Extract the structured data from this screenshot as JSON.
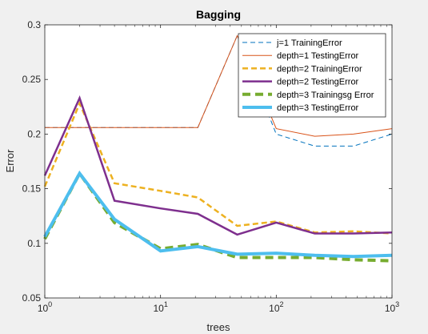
{
  "chart_data": {
    "type": "line",
    "title": "Bagging",
    "xlabel": "trees",
    "ylabel": "Error",
    "xscale": "log",
    "xlim": [
      1,
      1000
    ],
    "ylim": [
      0.05,
      0.3
    ],
    "xticks": [
      1,
      10,
      100,
      1000
    ],
    "xtick_labels": [
      {
        "base": "10",
        "exp": "0"
      },
      {
        "base": "10",
        "exp": "1"
      },
      {
        "base": "10",
        "exp": "2"
      },
      {
        "base": "10",
        "exp": "3"
      }
    ],
    "yticks": [
      0.05,
      0.1,
      0.15,
      0.2,
      0.25,
      0.3
    ],
    "ytick_labels": [
      "0.05",
      "0.1",
      "0.15",
      "0.2",
      "0.25",
      "0.3"
    ],
    "grid": false,
    "legend_position": "top-right",
    "x": [
      1,
      2,
      4,
      10,
      21,
      46,
      100,
      215,
      464,
      1000
    ],
    "series": [
      {
        "name": "j=1 TrainingError",
        "color": "#0072bd",
        "width": 1,
        "dash": "6,4",
        "values": [
          0.206,
          0.206,
          0.206,
          0.206,
          0.206,
          0.29,
          0.2,
          0.189,
          0.189,
          0.2
        ]
      },
      {
        "name": "depth=1 TestingError",
        "color": "#d95319",
        "width": 1,
        "dash": "",
        "values": [
          0.206,
          0.206,
          0.206,
          0.206,
          0.206,
          0.29,
          0.205,
          0.198,
          0.2,
          0.205
        ]
      },
      {
        "name": "depth=2 TrainingError",
        "color": "#edb120",
        "width": 2.5,
        "dash": "7,4",
        "values": [
          0.152,
          0.228,
          0.155,
          0.148,
          0.142,
          0.116,
          0.12,
          0.11,
          0.111,
          0.109
        ]
      },
      {
        "name": "depth=2 TestingError",
        "color": "#7e2f8e",
        "width": 2.5,
        "dash": "",
        "values": [
          0.162,
          0.233,
          0.139,
          0.132,
          0.127,
          0.108,
          0.119,
          0.109,
          0.109,
          0.11
        ]
      },
      {
        "name": "depth=3 Trainingsg Error",
        "color": "#77ac30",
        "width": 4,
        "dash": "10,6",
        "values": [
          0.104,
          0.164,
          0.119,
          0.095,
          0.099,
          0.087,
          0.087,
          0.087,
          0.085,
          0.084
        ]
      },
      {
        "name": "depth=3 TestingError",
        "color": "#4dbeee",
        "width": 4,
        "dash": "",
        "values": [
          0.106,
          0.164,
          0.122,
          0.093,
          0.097,
          0.09,
          0.091,
          0.089,
          0.088,
          0.089
        ]
      }
    ]
  }
}
